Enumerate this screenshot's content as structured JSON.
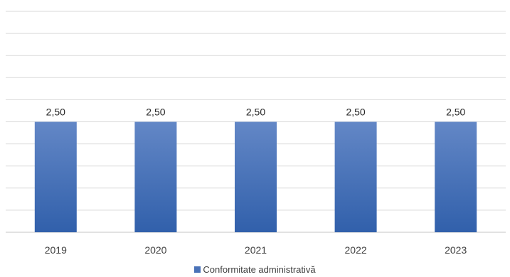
{
  "chart_data": {
    "type": "bar",
    "categories": [
      "2019",
      "2020",
      "2021",
      "2022",
      "2023"
    ],
    "series": [
      {
        "name": "Conformitate administrativă",
        "values": [
          2.5,
          2.5,
          2.5,
          2.5,
          2.5
        ]
      }
    ],
    "data_labels": [
      "2,50",
      "2,50",
      "2,50",
      "2,50",
      "2,50"
    ],
    "ylim": [
      0,
      5
    ],
    "grid": true,
    "legend_position": "bottom",
    "colors": {
      "bar_top": "#6387c6",
      "bar_bottom": "#3160ab",
      "grid": "#d9d9d9"
    }
  }
}
